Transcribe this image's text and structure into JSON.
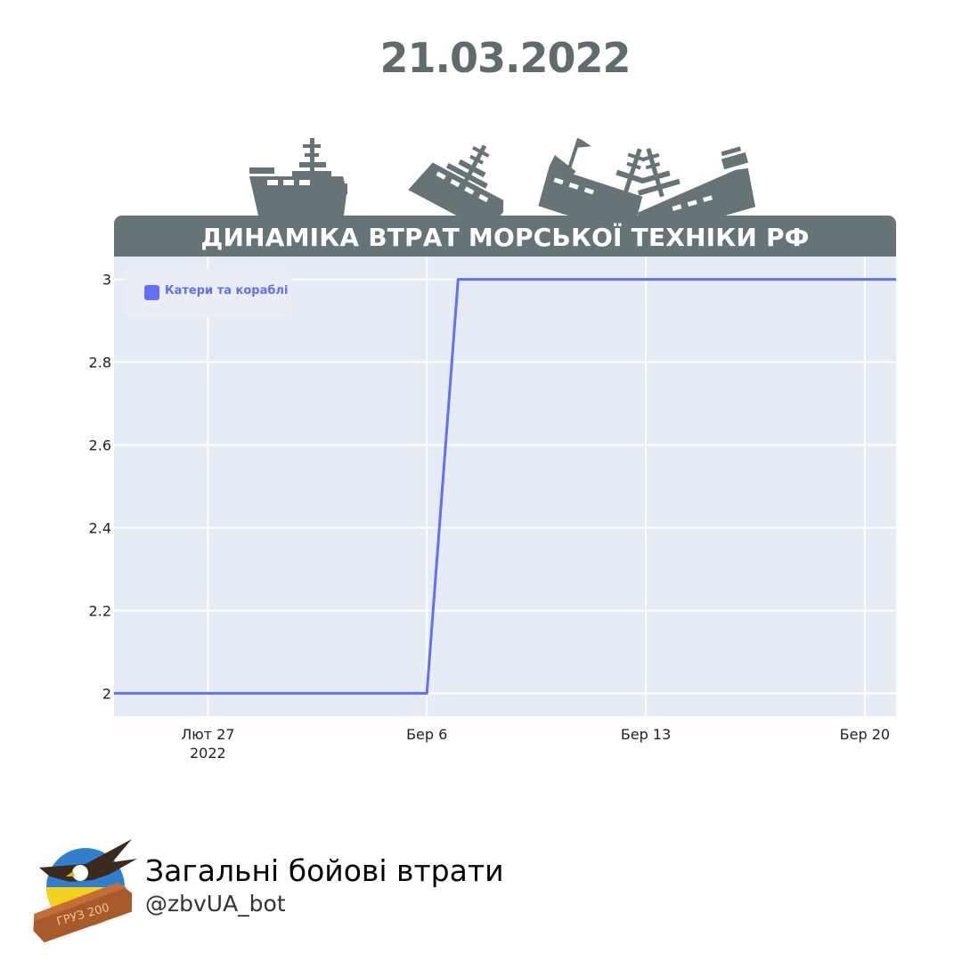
{
  "header": {
    "date": "21.03.2022",
    "chart_banner": "ДИНАМІКА ВТРАТ МОРСЬКОЇ ТЕХНІКИ РФ"
  },
  "icons": [
    "warship-icon",
    "sinking-warship-icon",
    "sinking-flagship-icon",
    "sinking-cruiser-icon"
  ],
  "colors": {
    "banner": "#667377",
    "series": "#636efa",
    "plot_bg": "#e5ecf6",
    "title": "#5f6b6d"
  },
  "chart_data": {
    "type": "line",
    "title": "ДИНАМІКА ВТРАТ МОРСЬКОЇ ТЕХНІКИ РФ",
    "xlabel": "",
    "ylabel": "",
    "x_range": [
      "2022-02-24",
      "2022-03-21"
    ],
    "ylim": [
      1.945,
      3.055
    ],
    "yticks": [
      2,
      2.2,
      2.4,
      2.6,
      2.8,
      3
    ],
    "ytick_labels": [
      "2",
      "2.2",
      "2.4",
      "2.6",
      "2.8",
      "3"
    ],
    "xticks": [
      {
        "date": "2022-02-27",
        "label": "Лют 27",
        "sublabel": "2022"
      },
      {
        "date": "2022-03-06",
        "label": "Бер 6",
        "sublabel": ""
      },
      {
        "date": "2022-03-13",
        "label": "Бер 13",
        "sublabel": ""
      },
      {
        "date": "2022-03-20",
        "label": "Бер 20",
        "sublabel": ""
      }
    ],
    "grid": true,
    "legend": {
      "position": "top-left"
    },
    "series": [
      {
        "name": "Катери та кораблі",
        "color": "#636efa",
        "x": [
          "2022-02-24",
          "2022-03-06",
          "2022-03-07",
          "2022-03-21"
        ],
        "y": [
          2,
          2,
          3,
          3
        ]
      }
    ]
  },
  "footer": {
    "title": "Загальні бойові втрати",
    "handle": "@zbvUA_bot",
    "logo_icon": "eagle-coffin-logo-icon",
    "logo_text": "ГРУЗ 200"
  }
}
